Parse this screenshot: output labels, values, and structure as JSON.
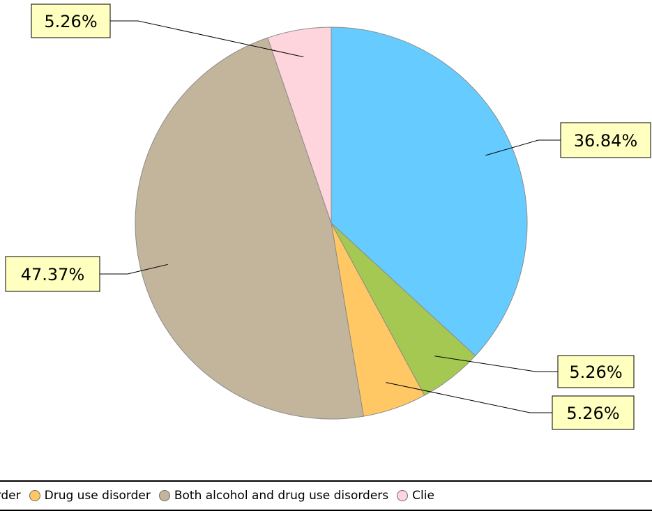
{
  "chart_data": {
    "type": "pie",
    "title": "",
    "slices": [
      {
        "label": "Alcohol use disorder",
        "value": 36.84,
        "display": "36.84%",
        "color": "#66ccff"
      },
      {
        "label": "",
        "value": 5.26,
        "display": "5.26%",
        "color": "#a5c852"
      },
      {
        "label": "Drug use disorder",
        "value": 5.26,
        "display": "5.26%",
        "color": "#ffc864"
      },
      {
        "label": "Both alcohol and drug use disorders",
        "value": 47.37,
        "display": "47.37%",
        "color": "#c2b59b"
      },
      {
        "label": "Clie",
        "value": 5.26,
        "display": "5.26%",
        "color": "#ffd5dd"
      }
    ],
    "legend": {
      "position": "bottom",
      "items": [
        {
          "label": "Alcohol use disorder",
          "color": "#66ccff"
        },
        {
          "label": "Drug use disorder",
          "color": "#ffc864"
        },
        {
          "label": "Both alcohol and drug use disorders",
          "color": "#c2b59b"
        },
        {
          "label": "Clie",
          "color": "#ffd5dd"
        }
      ]
    },
    "label_style": {
      "background": "#ffffc0",
      "border": "#000000"
    }
  }
}
